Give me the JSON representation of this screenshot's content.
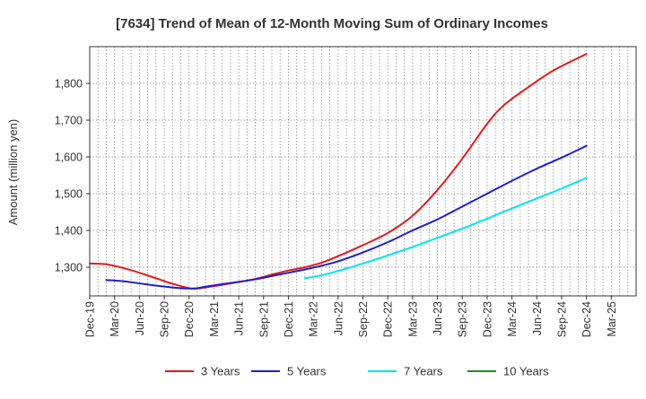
{
  "chart_data": {
    "type": "line",
    "title": "[7634]  Trend of Mean of 12-Month Moving Sum of Ordinary Incomes",
    "xlabel": "",
    "ylabel": "Amount (million yen)",
    "ylim": [
      1222,
      1900
    ],
    "yticks": [
      1300,
      1400,
      1500,
      1600,
      1700,
      1800
    ],
    "ytick_labels": [
      "1,300",
      "1,400",
      "1,500",
      "1,600",
      "1,700",
      "1,800"
    ],
    "x_range": [
      0,
      66
    ],
    "xticks": [
      {
        "i": 0,
        "label": "Dec-19"
      },
      {
        "i": 3,
        "label": "Mar-20"
      },
      {
        "i": 6,
        "label": "Jun-20"
      },
      {
        "i": 9,
        "label": "Sep-20"
      },
      {
        "i": 12,
        "label": "Dec-20"
      },
      {
        "i": 15,
        "label": "Mar-21"
      },
      {
        "i": 18,
        "label": "Jun-21"
      },
      {
        "i": 21,
        "label": "Sep-21"
      },
      {
        "i": 24,
        "label": "Dec-21"
      },
      {
        "i": 27,
        "label": "Mar-22"
      },
      {
        "i": 30,
        "label": "Jun-22"
      },
      {
        "i": 33,
        "label": "Sep-22"
      },
      {
        "i": 36,
        "label": "Dec-22"
      },
      {
        "i": 39,
        "label": "Mar-23"
      },
      {
        "i": 42,
        "label": "Jun-23"
      },
      {
        "i": 45,
        "label": "Sep-23"
      },
      {
        "i": 48,
        "label": "Dec-23"
      },
      {
        "i": 51,
        "label": "Mar-24"
      },
      {
        "i": 54,
        "label": "Jun-24"
      },
      {
        "i": 57,
        "label": "Sep-24"
      },
      {
        "i": 60,
        "label": "Dec-24"
      },
      {
        "i": 63,
        "label": "Mar-25"
      }
    ],
    "grid": true,
    "legend_position": "bottom",
    "series": [
      {
        "name": "3 Years",
        "color": "#e31a1c",
        "points": [
          [
            0,
            1310
          ],
          [
            2,
            1308
          ],
          [
            4,
            1298
          ],
          [
            6,
            1285
          ],
          [
            8,
            1270
          ],
          [
            10,
            1255
          ],
          [
            12,
            1243
          ],
          [
            13,
            1242
          ],
          [
            14,
            1245
          ],
          [
            16,
            1252
          ],
          [
            18,
            1260
          ],
          [
            20,
            1268
          ],
          [
            22,
            1280
          ],
          [
            24,
            1291
          ],
          [
            26,
            1300
          ],
          [
            28,
            1312
          ],
          [
            30,
            1330
          ],
          [
            33,
            1360
          ],
          [
            36,
            1393
          ],
          [
            39,
            1440
          ],
          [
            42,
            1510
          ],
          [
            45,
            1595
          ],
          [
            48,
            1690
          ],
          [
            50,
            1740
          ],
          [
            53,
            1790
          ],
          [
            56,
            1835
          ],
          [
            60,
            1880
          ]
        ]
      },
      {
        "name": "5 Years",
        "color": "#1f1fcc",
        "points": [
          [
            2,
            1265
          ],
          [
            4,
            1262
          ],
          [
            6,
            1256
          ],
          [
            8,
            1250
          ],
          [
            10,
            1245
          ],
          [
            12,
            1242
          ],
          [
            13,
            1243
          ],
          [
            14,
            1247
          ],
          [
            16,
            1254
          ],
          [
            18,
            1260
          ],
          [
            20,
            1267
          ],
          [
            22,
            1276
          ],
          [
            24,
            1285
          ],
          [
            26,
            1294
          ],
          [
            28,
            1304
          ],
          [
            30,
            1316
          ],
          [
            33,
            1340
          ],
          [
            36,
            1368
          ],
          [
            39,
            1400
          ],
          [
            42,
            1430
          ],
          [
            45,
            1465
          ],
          [
            48,
            1500
          ],
          [
            51,
            1535
          ],
          [
            54,
            1568
          ],
          [
            57,
            1598
          ],
          [
            60,
            1630
          ]
        ]
      },
      {
        "name": "7 Years",
        "color": "#00e5ee",
        "points": [
          [
            26,
            1270
          ],
          [
            28,
            1278
          ],
          [
            30,
            1290
          ],
          [
            33,
            1310
          ],
          [
            36,
            1332
          ],
          [
            39,
            1355
          ],
          [
            42,
            1380
          ],
          [
            45,
            1405
          ],
          [
            48,
            1432
          ],
          [
            51,
            1460
          ],
          [
            54,
            1487
          ],
          [
            57,
            1514
          ],
          [
            60,
            1543
          ]
        ]
      },
      {
        "name": "10 Years",
        "color": "#228b22",
        "points": []
      }
    ]
  }
}
